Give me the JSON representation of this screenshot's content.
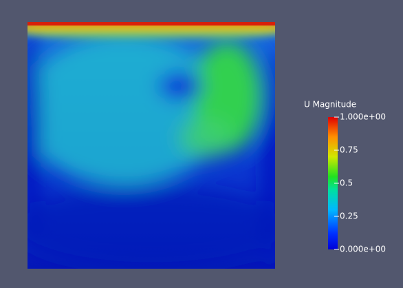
{
  "colorbar": {
    "title": "U Magnitude",
    "range": [
      0,
      1
    ],
    "ticks": [
      {
        "value": 0,
        "label": "0.000e+00"
      },
      0.25,
      0.5,
      0.75,
      {
        "value": 1,
        "label": "1.000e+00"
      }
    ]
  }
}
